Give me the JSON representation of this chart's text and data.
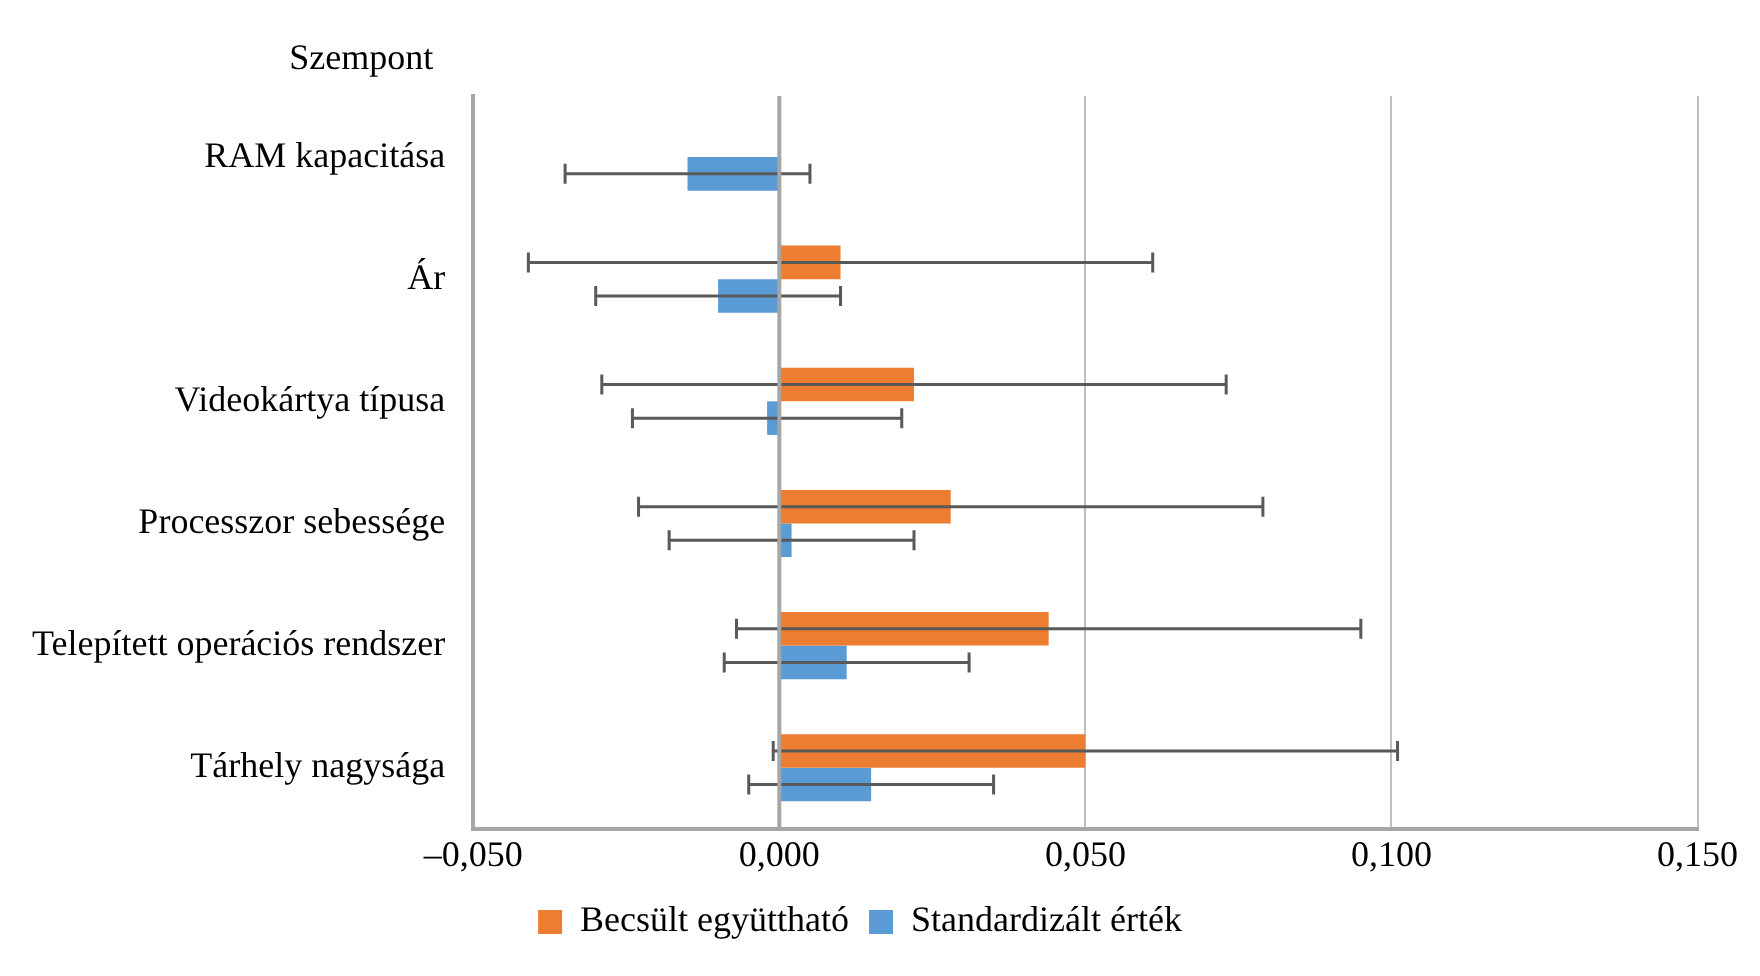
{
  "chart_data": {
    "type": "bar",
    "orientation": "horizontal",
    "ylabel": "Szempont",
    "categories": [
      "RAM kapacitása",
      "Ár",
      "Videokártya típusa",
      "Processzor sebessége",
      "Telepített operációs rendszer",
      "Tárhely nagysága"
    ],
    "series": [
      {
        "name": "Becsült együttható",
        "color": "#ed7d31",
        "values": [
          null,
          0.01,
          0.022,
          0.028,
          0.044,
          0.05
        ],
        "errors": [
          null,
          [
            -0.041,
            0.061
          ],
          [
            -0.029,
            0.073
          ],
          [
            -0.023,
            0.079
          ],
          [
            -0.007,
            0.095
          ],
          [
            -0.001,
            0.101
          ]
        ]
      },
      {
        "name": "Standardizált érték",
        "color": "#5b9bd5",
        "values": [
          -0.015,
          -0.01,
          -0.002,
          0.002,
          0.011,
          0.015
        ],
        "errors": [
          [
            -0.035,
            0.005
          ],
          [
            -0.03,
            0.01
          ],
          [
            -0.024,
            0.02
          ],
          [
            -0.018,
            0.022
          ],
          [
            -0.009,
            0.031
          ],
          [
            -0.005,
            0.035
          ]
        ]
      }
    ],
    "xlim": [
      -0.05,
      0.15
    ],
    "xticks": [
      {
        "value": -0.05,
        "label": "–0,050"
      },
      {
        "value": 0,
        "label": "0,000"
      },
      {
        "value": 0.05,
        "label": "0,050"
      },
      {
        "value": 0.1,
        "label": "0,100"
      },
      {
        "value": 0.15,
        "label": "0,150"
      }
    ],
    "grid": "x",
    "legend": "bottom"
  }
}
